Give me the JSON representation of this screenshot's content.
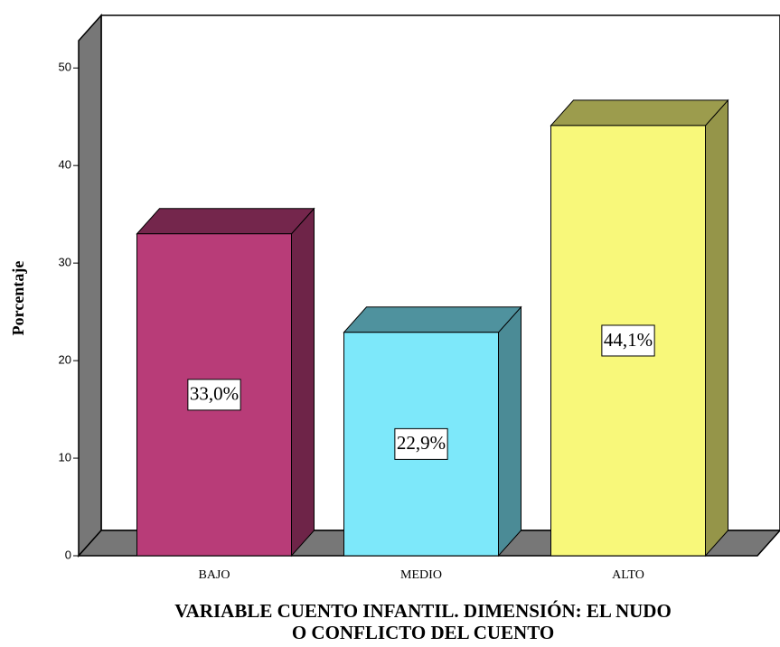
{
  "chart_data": {
    "type": "bar3d",
    "title": [
      "VARIABLE CUENTO INFANTIL. DIMENSIÓN: EL NUDO",
      "O CONFLICTO DEL CUENTO"
    ],
    "y_label": "Porcentaje",
    "categories": [
      "BAJO",
      "MEDIO",
      "ALTO"
    ],
    "values": [
      33.0,
      22.9,
      44.1
    ],
    "value_labels": [
      "33,0%",
      "22,9%",
      "44,1%"
    ],
    "colors": [
      "#b83c78",
      "#7de8fa",
      "#f8f87a"
    ],
    "ylim": [
      0,
      52.8
    ],
    "yticks": [
      0,
      10,
      20,
      30,
      40,
      50
    ],
    "grid": false
  }
}
